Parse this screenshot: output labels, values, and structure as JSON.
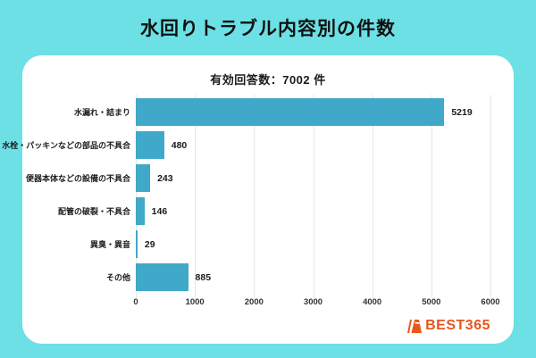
{
  "page": {
    "background": "#6CE0E5",
    "title": "水回りトラブル内容別の件数"
  },
  "card": {
    "subtitle": "有効回答数：7002 件"
  },
  "chart_data": {
    "type": "bar",
    "orientation": "horizontal",
    "title": "水回りトラブル内容別の件数",
    "subtitle": "有効回答数：7002 件",
    "categories": [
      "水漏れ・詰まり",
      "水栓・パッキンなどの部品の不具合",
      "便器本体などの設備の不具合",
      "配管の破裂・不具合",
      "異臭・異音",
      "その他"
    ],
    "values": [
      5219,
      480,
      243,
      146,
      29,
      885
    ],
    "xlabel": "",
    "ylabel": "",
    "xlim": [
      0,
      6000
    ],
    "xticks": [
      0,
      1000,
      2000,
      3000,
      4000,
      5000,
      6000
    ],
    "grid": true,
    "bar_color": "#40A8C8",
    "gridline_color": "#E4E7EA"
  },
  "logo": {
    "text": "BEST365",
    "color": "#E8561E",
    "icon": "best365-mark-icon"
  }
}
